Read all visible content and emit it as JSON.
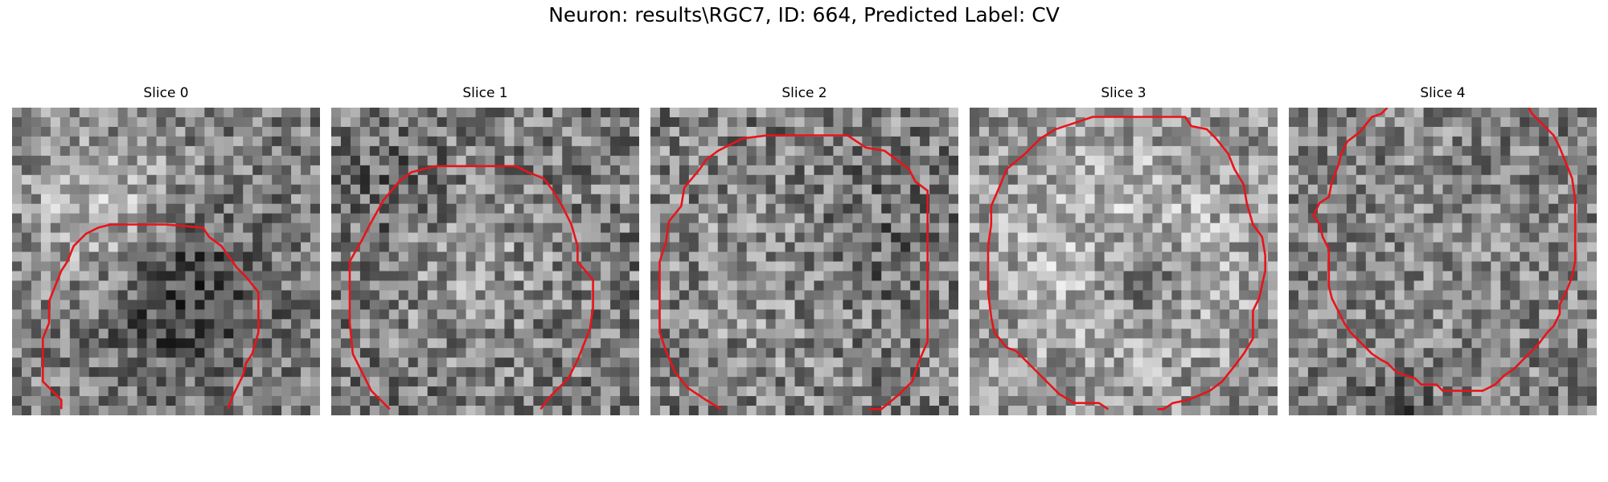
{
  "figure": {
    "title": "Neuron: results\\RGC7, ID: 664, Predicted Label: CV",
    "contour_color": "#e8141a"
  },
  "panels": [
    {
      "title": "Slice 0",
      "contour": [
        [
          0.16,
          0.98
        ],
        [
          0.16,
          0.95
        ],
        [
          0.1,
          0.89
        ],
        [
          0.1,
          0.83
        ],
        [
          0.1,
          0.75
        ],
        [
          0.12,
          0.7
        ],
        [
          0.12,
          0.63
        ],
        [
          0.14,
          0.58
        ],
        [
          0.16,
          0.53
        ],
        [
          0.18,
          0.5
        ],
        [
          0.2,
          0.45
        ],
        [
          0.24,
          0.41
        ],
        [
          0.28,
          0.39
        ],
        [
          0.32,
          0.38
        ],
        [
          0.44,
          0.38
        ],
        [
          0.5,
          0.38
        ],
        [
          0.62,
          0.39
        ],
        [
          0.64,
          0.42
        ],
        [
          0.68,
          0.45
        ],
        [
          0.73,
          0.52
        ],
        [
          0.76,
          0.55
        ],
        [
          0.8,
          0.6
        ],
        [
          0.8,
          0.73
        ],
        [
          0.78,
          0.8
        ],
        [
          0.76,
          0.83
        ],
        [
          0.75,
          0.87
        ],
        [
          0.72,
          0.93
        ],
        [
          0.7,
          0.98
        ]
      ]
    },
    {
      "title": "Slice 1",
      "contour": [
        [
          0.19,
          0.98
        ],
        [
          0.13,
          0.92
        ],
        [
          0.1,
          0.86
        ],
        [
          0.07,
          0.8
        ],
        [
          0.06,
          0.7
        ],
        [
          0.06,
          0.5
        ],
        [
          0.1,
          0.43
        ],
        [
          0.12,
          0.39
        ],
        [
          0.17,
          0.3
        ],
        [
          0.22,
          0.24
        ],
        [
          0.26,
          0.21
        ],
        [
          0.34,
          0.19
        ],
        [
          0.38,
          0.19
        ],
        [
          0.6,
          0.19
        ],
        [
          0.64,
          0.21
        ],
        [
          0.69,
          0.23
        ],
        [
          0.72,
          0.27
        ],
        [
          0.75,
          0.32
        ],
        [
          0.78,
          0.38
        ],
        [
          0.8,
          0.45
        ],
        [
          0.8,
          0.5
        ],
        [
          0.85,
          0.56
        ],
        [
          0.85,
          0.65
        ],
        [
          0.84,
          0.72
        ],
        [
          0.8,
          0.82
        ],
        [
          0.77,
          0.88
        ],
        [
          0.71,
          0.94
        ],
        [
          0.68,
          0.98
        ]
      ]
    },
    {
      "title": "Slice 2",
      "contour": [
        [
          0.23,
          0.98
        ],
        [
          0.18,
          0.95
        ],
        [
          0.12,
          0.91
        ],
        [
          0.08,
          0.86
        ],
        [
          0.05,
          0.79
        ],
        [
          0.03,
          0.73
        ],
        [
          0.03,
          0.61
        ],
        [
          0.03,
          0.5
        ],
        [
          0.05,
          0.44
        ],
        [
          0.06,
          0.37
        ],
        [
          0.1,
          0.32
        ],
        [
          0.11,
          0.26
        ],
        [
          0.16,
          0.2
        ],
        [
          0.18,
          0.17
        ],
        [
          0.22,
          0.14
        ],
        [
          0.3,
          0.1
        ],
        [
          0.38,
          0.09
        ],
        [
          0.64,
          0.09
        ],
        [
          0.7,
          0.13
        ],
        [
          0.76,
          0.14
        ],
        [
          0.8,
          0.17
        ],
        [
          0.84,
          0.2
        ],
        [
          0.86,
          0.24
        ],
        [
          0.9,
          0.27
        ],
        [
          0.9,
          0.4
        ],
        [
          0.9,
          0.6
        ],
        [
          0.9,
          0.76
        ],
        [
          0.87,
          0.83
        ],
        [
          0.85,
          0.89
        ],
        [
          0.81,
          0.93
        ],
        [
          0.75,
          0.98
        ],
        [
          0.71,
          0.98
        ]
      ]
    },
    {
      "title": "Slice 3",
      "contour": [
        [
          0.45,
          0.98
        ],
        [
          0.42,
          0.96
        ],
        [
          0.34,
          0.96
        ],
        [
          0.29,
          0.93
        ],
        [
          0.24,
          0.88
        ],
        [
          0.19,
          0.83
        ],
        [
          0.15,
          0.79
        ],
        [
          0.12,
          0.78
        ],
        [
          0.08,
          0.73
        ],
        [
          0.07,
          0.68
        ],
        [
          0.06,
          0.6
        ],
        [
          0.06,
          0.45
        ],
        [
          0.07,
          0.38
        ],
        [
          0.07,
          0.32
        ],
        [
          0.1,
          0.25
        ],
        [
          0.12,
          0.2
        ],
        [
          0.18,
          0.15
        ],
        [
          0.23,
          0.1
        ],
        [
          0.28,
          0.07
        ],
        [
          0.34,
          0.05
        ],
        [
          0.4,
          0.03
        ],
        [
          0.7,
          0.03
        ],
        [
          0.72,
          0.06
        ],
        [
          0.77,
          0.07
        ],
        [
          0.8,
          0.1
        ],
        [
          0.84,
          0.15
        ],
        [
          0.86,
          0.2
        ],
        [
          0.89,
          0.25
        ],
        [
          0.9,
          0.31
        ],
        [
          0.92,
          0.38
        ],
        [
          0.95,
          0.42
        ],
        [
          0.96,
          0.48
        ],
        [
          0.96,
          0.53
        ],
        [
          0.94,
          0.62
        ],
        [
          0.92,
          0.66
        ],
        [
          0.92,
          0.75
        ],
        [
          0.89,
          0.8
        ],
        [
          0.86,
          0.84
        ],
        [
          0.82,
          0.89
        ],
        [
          0.78,
          0.92
        ],
        [
          0.71,
          0.95
        ],
        [
          0.66,
          0.96
        ],
        [
          0.63,
          0.98
        ],
        [
          0.61,
          0.98
        ]
      ]
    },
    {
      "title": "Slice 4",
      "contour": [
        [
          0.32,
          0.0
        ],
        [
          0.3,
          0.02
        ],
        [
          0.27,
          0.03
        ],
        [
          0.23,
          0.08
        ],
        [
          0.19,
          0.11
        ],
        [
          0.17,
          0.15
        ],
        [
          0.16,
          0.19
        ],
        [
          0.14,
          0.24
        ],
        [
          0.13,
          0.29
        ],
        [
          0.1,
          0.31
        ],
        [
          0.08,
          0.35
        ],
        [
          0.1,
          0.38
        ],
        [
          0.11,
          0.42
        ],
        [
          0.13,
          0.46
        ],
        [
          0.13,
          0.58
        ],
        [
          0.14,
          0.62
        ],
        [
          0.16,
          0.66
        ],
        [
          0.18,
          0.7
        ],
        [
          0.2,
          0.73
        ],
        [
          0.23,
          0.76
        ],
        [
          0.25,
          0.78
        ],
        [
          0.27,
          0.8
        ],
        [
          0.3,
          0.82
        ],
        [
          0.32,
          0.83
        ],
        [
          0.35,
          0.86
        ],
        [
          0.38,
          0.87
        ],
        [
          0.41,
          0.88
        ],
        [
          0.43,
          0.9
        ],
        [
          0.48,
          0.9
        ],
        [
          0.5,
          0.92
        ],
        [
          0.63,
          0.92
        ],
        [
          0.67,
          0.9
        ],
        [
          0.7,
          0.87
        ],
        [
          0.73,
          0.85
        ],
        [
          0.76,
          0.82
        ],
        [
          0.78,
          0.8
        ],
        [
          0.81,
          0.77
        ],
        [
          0.84,
          0.73
        ],
        [
          0.86,
          0.71
        ],
        [
          0.88,
          0.67
        ],
        [
          0.88,
          0.64
        ],
        [
          0.9,
          0.6
        ],
        [
          0.92,
          0.55
        ],
        [
          0.93,
          0.5
        ],
        [
          0.93,
          0.45
        ],
        [
          0.93,
          0.3
        ],
        [
          0.92,
          0.23
        ],
        [
          0.9,
          0.18
        ],
        [
          0.88,
          0.13
        ],
        [
          0.86,
          0.09
        ],
        [
          0.82,
          0.05
        ],
        [
          0.79,
          0.02
        ],
        [
          0.78,
          0.0
        ]
      ]
    }
  ]
}
